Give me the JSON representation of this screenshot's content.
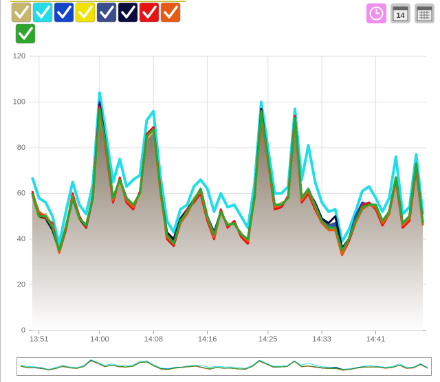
{
  "chart_data": {
    "type": "line",
    "x": [
      830,
      831,
      832,
      833,
      834,
      835,
      836,
      837,
      838,
      839,
      840,
      841,
      842,
      843,
      844,
      845,
      846,
      847,
      848,
      849,
      850,
      851,
      852,
      853,
      854,
      855,
      856,
      857,
      858,
      859,
      860,
      861,
      862,
      863,
      864,
      865,
      866,
      867,
      868,
      869,
      870,
      871,
      872,
      873,
      874,
      875,
      876,
      877,
      878,
      879,
      880,
      881,
      882,
      883,
      884,
      885,
      886,
      887,
      888
    ],
    "series": [
      {
        "color": "#c8b56e",
        "values": [
          59,
          49,
          51,
          46,
          36,
          46,
          59,
          48,
          47,
          57,
          95,
          79,
          57,
          65,
          57,
          54,
          59,
          84,
          87,
          61,
          41,
          39,
          49,
          53,
          58,
          61,
          49,
          41,
          51,
          47,
          46,
          43,
          39,
          57,
          95,
          74,
          54,
          56,
          57,
          92,
          57,
          61,
          54,
          47,
          44,
          46,
          34,
          39,
          49,
          53,
          56,
          54,
          47,
          51,
          66,
          46,
          49,
          72,
          46
        ]
      },
      {
        "color": "#22dde9",
        "values": [
          67,
          58,
          56,
          50,
          38,
          52,
          65,
          55,
          51,
          64,
          104,
          85,
          65,
          75,
          63,
          66,
          68,
          92,
          96,
          68,
          48,
          43,
          53,
          55,
          63,
          66,
          62,
          52,
          60,
          54,
          55,
          50,
          45,
          64,
          100,
          80,
          60,
          60,
          63,
          97,
          66,
          81,
          65,
          56,
          52,
          53,
          39,
          44,
          52,
          61,
          63,
          58,
          52,
          58,
          76,
          51,
          54,
          77,
          51
        ]
      },
      {
        "color": "#1346c8",
        "values": [
          60,
          50,
          50,
          45,
          35,
          45,
          58,
          49,
          46,
          58,
          100,
          80,
          58,
          66,
          58,
          55,
          60,
          85,
          88,
          62,
          42,
          39,
          48,
          52,
          57,
          62,
          50,
          42,
          52,
          46,
          47,
          42,
          40,
          58,
          97,
          75,
          55,
          55,
          58,
          93,
          58,
          62,
          55,
          48,
          45,
          46,
          35,
          40,
          50,
          56,
          55,
          55,
          48,
          52,
          67,
          47,
          50,
          73,
          47
        ]
      },
      {
        "color": "#f2e200",
        "values": [
          60,
          50,
          50,
          45,
          35,
          45,
          58,
          49,
          46,
          58,
          97,
          80,
          58,
          66,
          58,
          55,
          60,
          85,
          88,
          62,
          42,
          38,
          48,
          52,
          57,
          62,
          50,
          42,
          52,
          46,
          47,
          42,
          40,
          58,
          96,
          75,
          55,
          55,
          58,
          93,
          58,
          62,
          55,
          48,
          45,
          45,
          35,
          40,
          48,
          54,
          55,
          55,
          48,
          52,
          67,
          47,
          50,
          73,
          47
        ]
      },
      {
        "color": "#3a4c8c",
        "values": [
          60,
          50,
          50,
          45,
          35,
          45,
          58,
          49,
          46,
          58,
          98,
          80,
          58,
          66,
          58,
          55,
          60,
          85,
          88,
          62,
          42,
          39,
          48,
          52,
          57,
          62,
          50,
          42,
          52,
          46,
          47,
          42,
          40,
          58,
          96,
          75,
          55,
          55,
          58,
          93,
          58,
          62,
          55,
          48,
          46,
          47,
          35,
          40,
          49,
          55,
          55,
          55,
          48,
          52,
          67,
          47,
          50,
          73,
          47
        ]
      },
      {
        "color": "#0b0b3b",
        "values": [
          60,
          50,
          49,
          44,
          35,
          45,
          58,
          49,
          45,
          58,
          99,
          80,
          58,
          66,
          58,
          55,
          60,
          85,
          89,
          62,
          43,
          40,
          49,
          53,
          57,
          62,
          50,
          43,
          52,
          46,
          47,
          42,
          40,
          58,
          97,
          75,
          55,
          55,
          58,
          93,
          58,
          61,
          56,
          49,
          47,
          50,
          36,
          40,
          48,
          55,
          55,
          55,
          48,
          52,
          67,
          47,
          50,
          73,
          47
        ]
      },
      {
        "color": "#e81212",
        "values": [
          61,
          51,
          49,
          47,
          34,
          44,
          60,
          50,
          45,
          59,
          98,
          78,
          56,
          67,
          56,
          53,
          61,
          86,
          89,
          63,
          40,
          37,
          47,
          53,
          56,
          60,
          48,
          40,
          53,
          45,
          48,
          41,
          38,
          59,
          95,
          74,
          53,
          54,
          59,
          94,
          56,
          60,
          53,
          47,
          44,
          44,
          33,
          39,
          47,
          55,
          56,
          53,
          46,
          51,
          66,
          45,
          48,
          71,
          46
        ]
      },
      {
        "color": "#e85a12",
        "values": [
          60,
          52,
          50,
          46,
          34,
          45,
          59,
          49,
          46,
          58,
          96,
          79,
          57,
          66,
          57,
          54,
          60,
          85,
          88,
          61,
          41,
          38,
          47,
          51,
          57,
          61,
          49,
          41,
          52,
          46,
          47,
          42,
          39,
          58,
          94,
          74,
          54,
          55,
          58,
          92,
          57,
          61,
          54,
          47,
          44,
          44,
          33,
          40,
          47,
          53,
          55,
          54,
          47,
          51,
          67,
          46,
          49,
          72,
          46
        ]
      },
      {
        "color": "#2ea62e",
        "values": [
          60,
          50,
          50,
          45,
          35,
          45,
          58,
          49,
          46,
          58,
          97,
          80,
          58,
          66,
          58,
          55,
          60,
          85,
          88,
          62,
          42,
          38,
          48,
          52,
          57,
          62,
          50,
          42,
          52,
          46,
          47,
          42,
          40,
          58,
          96,
          75,
          55,
          55,
          58,
          93,
          58,
          62,
          55,
          48,
          45,
          45,
          35,
          40,
          48,
          54,
          55,
          55,
          48,
          52,
          67,
          47,
          50,
          73,
          47
        ]
      }
    ],
    "area": true,
    "xlim": [
      829.5,
      888.5
    ],
    "xticks": [
      {
        "value": 831,
        "label": "13:51"
      },
      {
        "value": 840,
        "label": "14:00"
      },
      {
        "value": 848,
        "label": "14:08"
      },
      {
        "value": 856,
        "label": "14:16"
      },
      {
        "value": 865,
        "label": "14:25"
      },
      {
        "value": 873,
        "label": "14:33"
      },
      {
        "value": 881,
        "label": "14:41"
      }
    ],
    "ylim": [
      0,
      120
    ],
    "yticks": [
      0,
      20,
      40,
      60,
      80,
      100,
      120
    ],
    "grid": true
  },
  "toolbar": {
    "calendar_day": "14"
  }
}
